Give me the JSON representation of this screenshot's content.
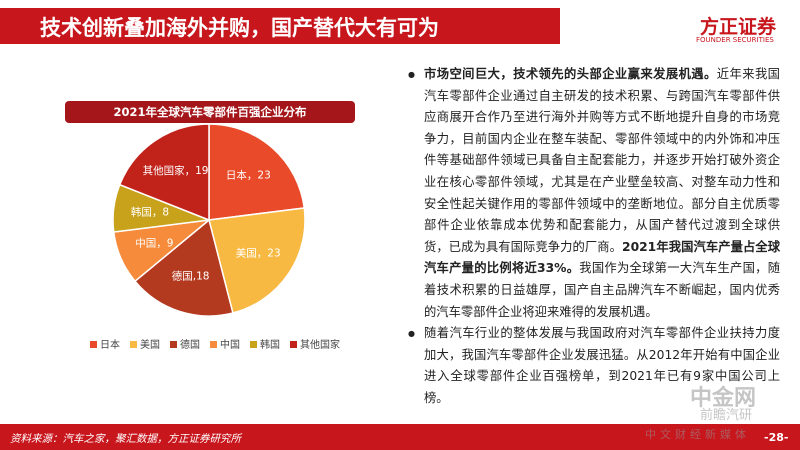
{
  "header": {
    "title": "技术创新叠加海外并购，国产替代大有可为",
    "logo": "方正证券",
    "logo_en": "FOUNDER SECURITIES"
  },
  "chart_data": {
    "type": "pie",
    "title": "2021年全球汽车零部件百强企业分布",
    "categories": [
      "日本",
      "美国",
      "德国",
      "中国",
      "韩国",
      "其他国家"
    ],
    "values": [
      23,
      23,
      18,
      9,
      8,
      19
    ],
    "value_labels": [
      "日本，23",
      "美国，23",
      "德国,18",
      "中国，9",
      "韩国，8",
      "其他国家，19"
    ],
    "colors": [
      "#e84a2a",
      "#f8b942",
      "#b3391f",
      "#f58b3b",
      "#c9a21b",
      "#c1231b"
    ],
    "legend": "bottom"
  },
  "text": {
    "bullets": [
      [
        {
          "bold": true,
          "text": "市场空间巨大，技术领先的头部企业赢来发展机遇。"
        },
        {
          "bold": false,
          "text": "近年来我国汽车零部件企业通过自主研发的技术积累、与跨国汽车零部件供应商展开合作乃至进行海外并购等方式不断地提升自身的市场竞争力，目前国内企业在整车装配、零部件领域中的内外饰和冲压件等基础部件领域已具备自主配套能力，并逐步开始打破外资企业在核心零部件领域，尤其是在产业壁垒较高、对整车动力性和安全性起关键作用的零部件领域中的垄断地位。部分自主优质零部件企业依靠成本优势和配套能力，从国产替代过渡到全球供货，已成为具有国际竞争力的厂商。"
        },
        {
          "bold": true,
          "text": "2021年我国汽车产量占全球汽车产量的比例将近33%。"
        },
        {
          "bold": false,
          "text": "我国作为全球第一大汽车生产国，随着技术积累的日益雄厚，国产自主品牌汽车不断崛起，国内优秀的汽车零部件企业将迎来难得的发展机遇。"
        }
      ],
      [
        {
          "bold": false,
          "text": "随着汽车行业的整体发展与我国政府对汽车零部件企业扶持力度加大，我国汽车零部件企业发展迅猛。从2012年开始有中国企业进入全球零部件企业百强榜单，到2021年已有9家中国公司上榜。"
        }
      ]
    ]
  },
  "footer": {
    "source": "资料来源：汽车之家，聚汇数据，方正证券研究所",
    "page": "-28-"
  },
  "watermark": {
    "brand": "中金网",
    "sub": "前瞻汽研",
    "tagline": "中文财经新媒体"
  }
}
